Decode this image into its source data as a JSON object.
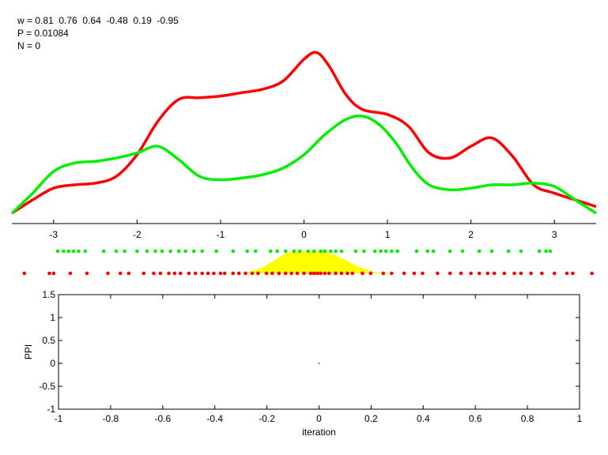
{
  "annotations": {
    "w_line": "w = 0.81  0.76  0.64  -0.48  0.19  -0.95",
    "p_line": "P = 0.01084",
    "n_line": "N = 0"
  },
  "colors": {
    "red": "#ff0000",
    "green": "#00ee00",
    "yellow": "#ffff00",
    "axis": "#000000"
  },
  "chart_data": [
    {
      "type": "line",
      "xlim": [
        -3.5,
        3.5
      ],
      "ylim": [
        0,
        1
      ],
      "xticks": [
        -3,
        -2,
        -1,
        0,
        1,
        2,
        3
      ],
      "xtick_labels": [
        "-3",
        "-2",
        "-1",
        "0",
        "1",
        "2",
        "3"
      ],
      "series": [
        {
          "color": "#ff0000",
          "x": [
            -3.5,
            -3.25,
            -3.0,
            -2.75,
            -2.5,
            -2.25,
            -2.0,
            -1.75,
            -1.5,
            -1.25,
            -1.0,
            -0.75,
            -0.5,
            -0.25,
            0.0,
            0.15,
            0.3,
            0.5,
            0.7,
            1.0,
            1.25,
            1.5,
            1.75,
            2.0,
            2.25,
            2.5,
            2.75,
            3.0,
            3.25,
            3.5
          ],
          "y": [
            0.0,
            0.08,
            0.15,
            0.17,
            0.18,
            0.22,
            0.35,
            0.55,
            0.68,
            0.69,
            0.7,
            0.72,
            0.74,
            0.79,
            0.92,
            0.96,
            0.88,
            0.71,
            0.62,
            0.59,
            0.52,
            0.36,
            0.33,
            0.4,
            0.45,
            0.34,
            0.17,
            0.12,
            0.08,
            0.04
          ]
        },
        {
          "color": "#00ee00",
          "x": [
            -3.5,
            -3.25,
            -3.0,
            -2.75,
            -2.5,
            -2.25,
            -2.0,
            -1.75,
            -1.5,
            -1.25,
            -1.0,
            -0.75,
            -0.5,
            -0.25,
            0.0,
            0.25,
            0.5,
            0.7,
            0.9,
            1.1,
            1.3,
            1.5,
            1.75,
            2.0,
            2.25,
            2.5,
            2.75,
            3.0,
            3.25,
            3.5
          ],
          "y": [
            0.0,
            0.12,
            0.25,
            0.3,
            0.31,
            0.33,
            0.36,
            0.4,
            0.32,
            0.22,
            0.2,
            0.21,
            0.23,
            0.27,
            0.35,
            0.47,
            0.56,
            0.58,
            0.53,
            0.42,
            0.27,
            0.17,
            0.14,
            0.15,
            0.17,
            0.17,
            0.18,
            0.16,
            0.08,
            0.0
          ]
        }
      ]
    },
    {
      "type": "scatter",
      "series": [
        {
          "color": "#00ee00",
          "x": [
            -2.95,
            -2.88,
            -2.82,
            -2.76,
            -2.7,
            -2.62,
            -2.4,
            -2.25,
            -2.15,
            -2.0,
            -1.88,
            -1.78,
            -1.7,
            -1.6,
            -1.5,
            -1.42,
            -1.32,
            -1.22,
            -1.05,
            -0.85,
            -0.68,
            -0.58,
            -0.4,
            -0.32,
            -0.22,
            -0.12,
            -0.05,
            0.05,
            0.12,
            0.2,
            0.25,
            0.32,
            0.38,
            0.45,
            0.62,
            0.72,
            0.85,
            0.92,
            0.98,
            1.05,
            1.12,
            1.35,
            1.48,
            1.55,
            1.75,
            1.9,
            2.1,
            2.25,
            2.45,
            2.6,
            2.82,
            2.9,
            2.95
          ]
        },
        {
          "color": "#ff0000",
          "x": [
            -3.35,
            -3.05,
            -3.0,
            -2.8,
            -2.6,
            -2.35,
            -2.2,
            -2.1,
            -1.92,
            -1.8,
            -1.72,
            -1.62,
            -1.55,
            -1.48,
            -1.38,
            -1.3,
            -1.22,
            -1.15,
            -1.08,
            -1.0,
            -0.95,
            -0.85,
            -0.78,
            -0.7,
            -0.62,
            -0.55,
            -0.45,
            -0.38,
            -0.3,
            -0.22,
            -0.15,
            -0.08,
            0.0,
            0.08,
            0.12,
            0.16,
            0.2,
            0.25,
            0.3,
            0.38,
            0.45,
            0.52,
            0.58,
            0.7,
            0.8,
            0.95,
            1.05,
            1.2,
            1.32,
            1.42,
            1.6,
            1.75,
            1.88,
            2.0,
            2.1,
            2.2,
            2.28,
            2.4,
            2.52,
            2.6,
            2.72,
            2.85,
            3.0,
            3.15,
            3.22,
            3.45
          ]
        },
        {
          "type": "area",
          "color": "#ffff00",
          "x": [
            -1.0,
            -0.7,
            -0.5,
            -0.35,
            -0.25,
            -0.15,
            0.0,
            0.15,
            0.25,
            0.35,
            0.5,
            0.65,
            0.85,
            1.1
          ],
          "y": [
            0.0,
            0.02,
            0.25,
            0.6,
            0.85,
            0.98,
            1.0,
            1.0,
            0.95,
            0.85,
            0.6,
            0.3,
            0.05,
            0.0
          ]
        }
      ]
    },
    {
      "type": "scatter",
      "xlim": [
        -1,
        1
      ],
      "ylim": [
        -1,
        1.5
      ],
      "xlabel": "iteration",
      "ylabel": "PPI",
      "xticks": [
        -1,
        -0.8,
        -0.6,
        -0.4,
        -0.2,
        0,
        0.2,
        0.4,
        0.6,
        0.8,
        1
      ],
      "xtick_labels": [
        "-1",
        "-0.8",
        "-0.6",
        "-0.4",
        "-0.2",
        "0",
        "0.2",
        "0.4",
        "0.6",
        "0.8",
        "1"
      ],
      "yticks": [
        -1,
        -0.5,
        0,
        0.5,
        1,
        1.5
      ],
      "ytick_labels": [
        "-1",
        "-0.5",
        "0",
        "0.5",
        "1",
        "1.5"
      ],
      "points": [
        {
          "x": 0,
          "y": 0
        }
      ]
    }
  ]
}
